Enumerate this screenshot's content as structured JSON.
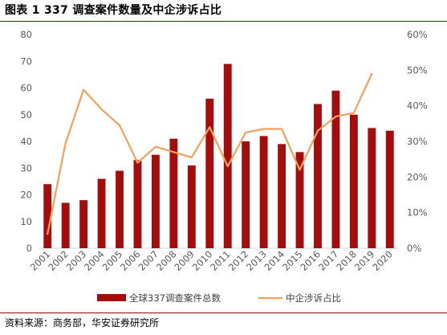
{
  "title": "图表 1  337 调查案件数量及中企涉诉占比",
  "source": "资料来源：商务部，华安证券研究所",
  "colors": {
    "bar": "#a50d0d",
    "line": "#f5a05a",
    "rule": "#8b0000"
  },
  "chart_data": {
    "type": "bar",
    "categories": [
      "2001",
      "2002",
      "2003",
      "2004",
      "2005",
      "2006",
      "2007",
      "2008",
      "2009",
      "2010",
      "2011",
      "2012",
      "2013",
      "2014",
      "2015",
      "2016",
      "2017",
      "2018",
      "2019",
      "2020"
    ],
    "series": [
      {
        "name": "全球337调查案件总数",
        "type": "bar",
        "axis": "left",
        "values": [
          24,
          17,
          18,
          26,
          29,
          33,
          35,
          41,
          31,
          56,
          69,
          40,
          42,
          39,
          36,
          54,
          59,
          50,
          45,
          44
        ]
      },
      {
        "name": "中企涉诉占比",
        "type": "line",
        "axis": "right",
        "values": [
          0.04,
          0.295,
          0.445,
          0.39,
          0.345,
          0.24,
          0.285,
          0.27,
          0.255,
          0.34,
          0.23,
          0.325,
          0.335,
          0.335,
          0.22,
          0.33,
          0.37,
          0.38,
          0.49,
          null
        ]
      }
    ],
    "left_axis": {
      "ylim": [
        0,
        80
      ],
      "ticks": [
        "0",
        "10",
        "20",
        "30",
        "40",
        "50",
        "60",
        "70",
        "80"
      ]
    },
    "right_axis": {
      "ylim": [
        0,
        0.6
      ],
      "ticks": [
        "0%",
        "10%",
        "20%",
        "30%",
        "40%",
        "50%",
        "60%"
      ]
    },
    "grid": false,
    "legend_position": "bottom"
  }
}
